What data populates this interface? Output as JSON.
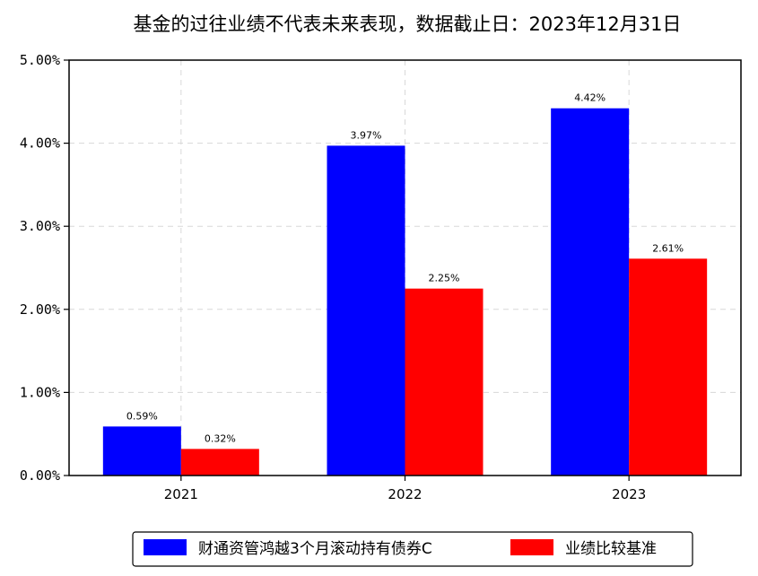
{
  "chart_data": {
    "type": "bar",
    "title": "基金的过往业绩不代表未来表现，数据截止日：2023年12月31日",
    "categories": [
      "2021",
      "2022",
      "2023"
    ],
    "series": [
      {
        "name": "财通资管鸿越3个月滚动持有债券C",
        "values": [
          0.59,
          3.97,
          4.42
        ],
        "labels": [
          "0.59%",
          "3.97%",
          "4.42%"
        ],
        "color": "#0000ff"
      },
      {
        "name": "业绩比较基准",
        "values": [
          0.32,
          2.25,
          2.61
        ],
        "labels": [
          "0.32%",
          "2.25%",
          "2.61%"
        ],
        "color": "#ff0000"
      }
    ],
    "yticks": [
      0,
      1,
      2,
      3,
      4,
      5
    ],
    "ytick_labels": [
      "0.00%",
      "1.00%",
      "2.00%",
      "3.00%",
      "4.00%",
      "5.00%"
    ],
    "ylim": [
      0,
      5
    ],
    "xlabel": "",
    "ylabel": "",
    "grid": true,
    "legend_position": "bottom"
  }
}
